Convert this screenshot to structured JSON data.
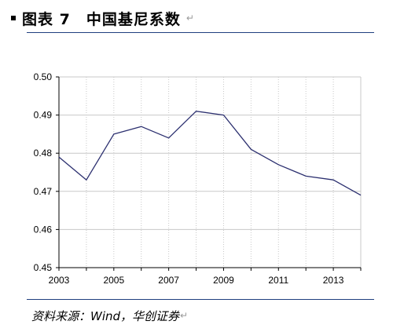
{
  "header": {
    "figure_no": "图表 7",
    "title": "中国基尼系数"
  },
  "footer": {
    "source": "资料来源：Wind，华创证券"
  },
  "colors": {
    "line": "#2b2f6f",
    "grid": "#c8c8c8",
    "axis": "#000000",
    "rule": "#1f3f7f"
  },
  "chart_data": {
    "type": "line",
    "title": "",
    "xlabel": "",
    "ylabel": "",
    "xlim": [
      2003,
      2014
    ],
    "ylim": [
      0.45,
      0.5
    ],
    "x_ticks": [
      2003,
      2005,
      2007,
      2009,
      2011,
      2013
    ],
    "y_ticks": [
      0.45,
      0.46,
      0.47,
      0.48,
      0.49,
      0.5
    ],
    "y_tick_labels": [
      "0.45",
      "0.46",
      "0.47",
      "0.48",
      "0.49",
      "0.50"
    ],
    "grid": true,
    "series": [
      {
        "values": [
          {
            "x": 2003,
            "y": 0.479
          },
          {
            "x": 2004,
            "y": 0.473
          },
          {
            "x": 2005,
            "y": 0.485
          },
          {
            "x": 2006,
            "y": 0.487
          },
          {
            "x": 2007,
            "y": 0.484
          },
          {
            "x": 2008,
            "y": 0.491
          },
          {
            "x": 2009,
            "y": 0.49
          },
          {
            "x": 2010,
            "y": 0.481
          },
          {
            "x": 2011,
            "y": 0.477
          },
          {
            "x": 2012,
            "y": 0.474
          },
          {
            "x": 2013,
            "y": 0.473
          },
          {
            "x": 2014,
            "y": 0.469
          }
        ]
      }
    ]
  }
}
